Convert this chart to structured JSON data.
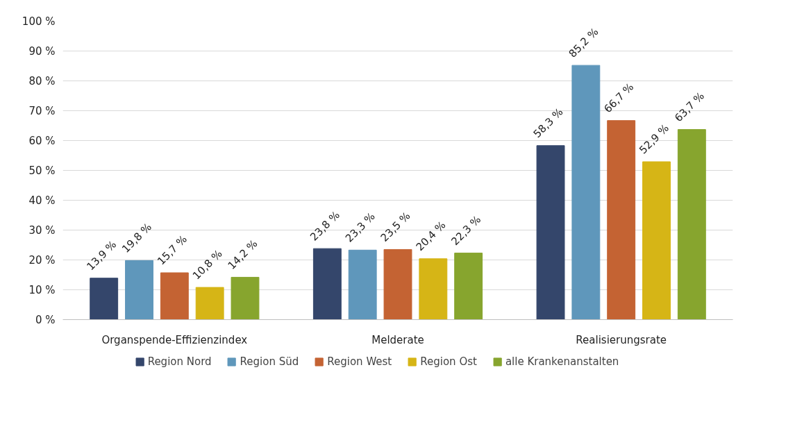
{
  "chart_data": {
    "type": "bar",
    "categories": [
      "Organspende-Effizienzindex",
      "Melderate",
      "Realisierungsrate"
    ],
    "series": [
      {
        "name": "Region Nord",
        "color": "#34466b",
        "values": [
          13.9,
          23.8,
          58.3
        ],
        "value_labels": [
          "13,9 %",
          "23,8 %",
          "58,3 %"
        ]
      },
      {
        "name": "Region Süd",
        "color": "#5f97bb",
        "values": [
          19.8,
          23.3,
          85.2
        ],
        "value_labels": [
          "19,8 %",
          "23,3 %",
          "85,2 %"
        ]
      },
      {
        "name": "Region West",
        "color": "#c46333",
        "values": [
          15.7,
          23.5,
          66.7
        ],
        "value_labels": [
          "15,7 %",
          "23,5 %",
          "66,7 %"
        ]
      },
      {
        "name": "Region Ost",
        "color": "#d6b516",
        "values": [
          10.8,
          20.4,
          52.9
        ],
        "value_labels": [
          "10,8 %",
          "20,4 %",
          "52,9 %"
        ]
      },
      {
        "name": "alle Krankenanstalten",
        "color": "#87a52e",
        "values": [
          14.2,
          22.3,
          63.7
        ],
        "value_labels": [
          "14,2 %",
          "22,3 %",
          "63,7 %"
        ]
      }
    ],
    "ylim": [
      0,
      100
    ],
    "yticks": [
      {
        "value": 0,
        "label": "0 %"
      },
      {
        "value": 10,
        "label": "10 %"
      },
      {
        "value": 20,
        "label": "20 %"
      },
      {
        "value": 30,
        "label": "30 %"
      },
      {
        "value": 40,
        "label": "40 %"
      },
      {
        "value": 50,
        "label": "50 %"
      },
      {
        "value": 60,
        "label": "60 %"
      },
      {
        "value": 70,
        "label": "70 %"
      },
      {
        "value": 80,
        "label": "80 %"
      },
      {
        "value": 90,
        "label": "90 %"
      },
      {
        "value": 100,
        "label": "100 %"
      }
    ],
    "grid": "y",
    "legend": "bottom"
  }
}
